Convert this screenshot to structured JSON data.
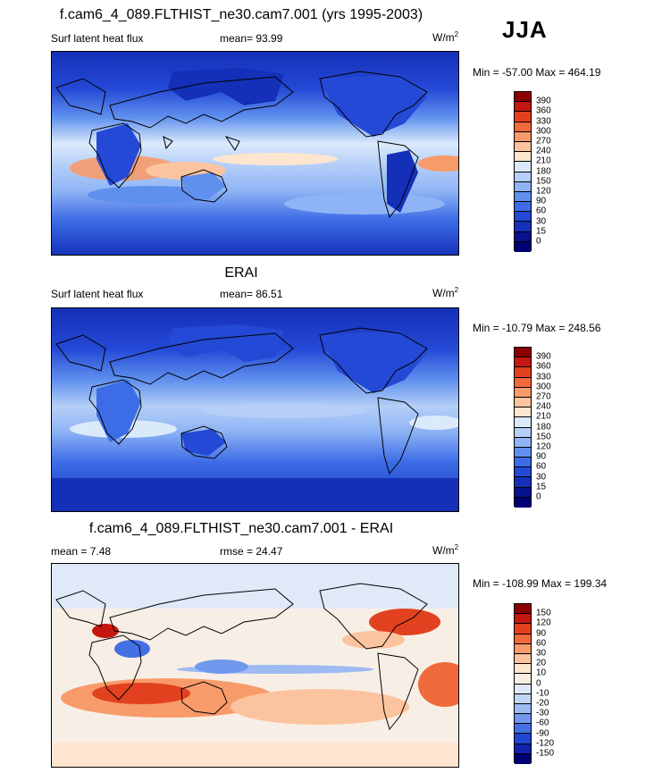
{
  "season": "JJA",
  "panels": [
    {
      "id": "model",
      "title": "f.cam6_4_089.FLTHIST_ne30.cam7.001 (yrs 1995-2003)",
      "left_label": "Surf latent heat flux",
      "center_label": "mean=  93.99",
      "units_base": "W/m",
      "units_sup": "2",
      "minmax": "Min = -57.00 Max = 464.19",
      "colorbar": {
        "labels": [
          "390",
          "360",
          "330",
          "300",
          "270",
          "240",
          "210",
          "180",
          "150",
          "120",
          "90",
          "60",
          "30",
          "15",
          "0"
        ],
        "colors": [
          "#8c0000",
          "#c5170f",
          "#e2411f",
          "#f06a3b",
          "#f79b6a",
          "#fcc49e",
          "#fde5d0",
          "#dbeafb",
          "#b5cff8",
          "#8fb4f5",
          "#5f90ee",
          "#3d6de6",
          "#2449d6",
          "#1430b8",
          "#08118e",
          "#000075"
        ]
      }
    },
    {
      "id": "obs",
      "title": "ERAI",
      "left_label": "Surf latent heat flux",
      "center_label": "mean=  86.51",
      "units_base": "W/m",
      "units_sup": "2",
      "minmax": "Min = -10.79 Max = 248.56",
      "colorbar": {
        "labels": [
          "390",
          "360",
          "330",
          "300",
          "270",
          "240",
          "210",
          "180",
          "150",
          "120",
          "90",
          "60",
          "30",
          "15",
          "0"
        ],
        "colors": [
          "#8c0000",
          "#c5170f",
          "#e2411f",
          "#f06a3b",
          "#f79b6a",
          "#fcc49e",
          "#fde5d0",
          "#dbeafb",
          "#b5cff8",
          "#8fb4f5",
          "#5f90ee",
          "#3d6de6",
          "#2449d6",
          "#1430b8",
          "#08118e",
          "#000075"
        ]
      }
    },
    {
      "id": "diff",
      "title": "f.cam6_4_089.FLTHIST_ne30.cam7.001 - ERAI",
      "left_label": "mean =   7.48",
      "center_label": "rmse =  24.47",
      "units_base": "W/m",
      "units_sup": "2",
      "minmax": "Min = -108.99 Max = 199.34",
      "colorbar": {
        "labels": [
          "150",
          "120",
          "90",
          "60",
          "30",
          "20",
          "10",
          "0",
          "-10",
          "-20",
          "-30",
          "-60",
          "-90",
          "-120",
          "-150"
        ],
        "colors": [
          "#8c0000",
          "#c5170f",
          "#e2411f",
          "#f06a3b",
          "#f79b6a",
          "#fcc49e",
          "#fde5d0",
          "#f7efe6",
          "#dfe9f8",
          "#c2d6f6",
          "#9dbaf3",
          "#6f98ee",
          "#4470e4",
          "#2346d2",
          "#0f22ae",
          "#000075"
        ]
      }
    }
  ]
}
